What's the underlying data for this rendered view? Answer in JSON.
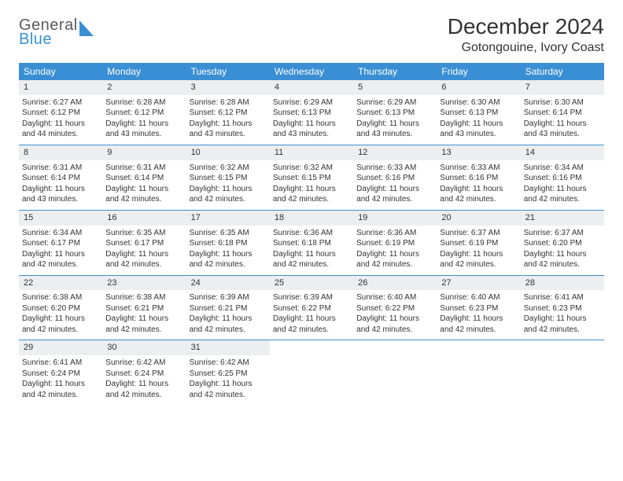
{
  "logo": {
    "line1": "General",
    "line2": "Blue"
  },
  "title": "December 2024",
  "location": "Gotongouine, Ivory Coast",
  "colors": {
    "header_bg": "#3a8fd4",
    "header_fg": "#ffffff",
    "daynum_bg": "#eceeef",
    "week_divider": "#3a8fd4",
    "text": "#333333",
    "logo_gray": "#5a5a5a",
    "logo_blue": "#3a8fd4"
  },
  "typography": {
    "title_fontsize": 28,
    "location_fontsize": 16,
    "weekday_fontsize": 12,
    "daynum_fontsize": 11,
    "body_fontsize": 10
  },
  "weekdays": [
    "Sunday",
    "Monday",
    "Tuesday",
    "Wednesday",
    "Thursday",
    "Friday",
    "Saturday"
  ],
  "days": [
    {
      "num": "1",
      "sunrise": "Sunrise: 6:27 AM",
      "sunset": "Sunset: 6:12 PM",
      "daylight1": "Daylight: 11 hours",
      "daylight2": "and 44 minutes."
    },
    {
      "num": "2",
      "sunrise": "Sunrise: 6:28 AM",
      "sunset": "Sunset: 6:12 PM",
      "daylight1": "Daylight: 11 hours",
      "daylight2": "and 43 minutes."
    },
    {
      "num": "3",
      "sunrise": "Sunrise: 6:28 AM",
      "sunset": "Sunset: 6:12 PM",
      "daylight1": "Daylight: 11 hours",
      "daylight2": "and 43 minutes."
    },
    {
      "num": "4",
      "sunrise": "Sunrise: 6:29 AM",
      "sunset": "Sunset: 6:13 PM",
      "daylight1": "Daylight: 11 hours",
      "daylight2": "and 43 minutes."
    },
    {
      "num": "5",
      "sunrise": "Sunrise: 6:29 AM",
      "sunset": "Sunset: 6:13 PM",
      "daylight1": "Daylight: 11 hours",
      "daylight2": "and 43 minutes."
    },
    {
      "num": "6",
      "sunrise": "Sunrise: 6:30 AM",
      "sunset": "Sunset: 6:13 PM",
      "daylight1": "Daylight: 11 hours",
      "daylight2": "and 43 minutes."
    },
    {
      "num": "7",
      "sunrise": "Sunrise: 6:30 AM",
      "sunset": "Sunset: 6:14 PM",
      "daylight1": "Daylight: 11 hours",
      "daylight2": "and 43 minutes."
    },
    {
      "num": "8",
      "sunrise": "Sunrise: 6:31 AM",
      "sunset": "Sunset: 6:14 PM",
      "daylight1": "Daylight: 11 hours",
      "daylight2": "and 43 minutes."
    },
    {
      "num": "9",
      "sunrise": "Sunrise: 6:31 AM",
      "sunset": "Sunset: 6:14 PM",
      "daylight1": "Daylight: 11 hours",
      "daylight2": "and 42 minutes."
    },
    {
      "num": "10",
      "sunrise": "Sunrise: 6:32 AM",
      "sunset": "Sunset: 6:15 PM",
      "daylight1": "Daylight: 11 hours",
      "daylight2": "and 42 minutes."
    },
    {
      "num": "11",
      "sunrise": "Sunrise: 6:32 AM",
      "sunset": "Sunset: 6:15 PM",
      "daylight1": "Daylight: 11 hours",
      "daylight2": "and 42 minutes."
    },
    {
      "num": "12",
      "sunrise": "Sunrise: 6:33 AM",
      "sunset": "Sunset: 6:16 PM",
      "daylight1": "Daylight: 11 hours",
      "daylight2": "and 42 minutes."
    },
    {
      "num": "13",
      "sunrise": "Sunrise: 6:33 AM",
      "sunset": "Sunset: 6:16 PM",
      "daylight1": "Daylight: 11 hours",
      "daylight2": "and 42 minutes."
    },
    {
      "num": "14",
      "sunrise": "Sunrise: 6:34 AM",
      "sunset": "Sunset: 6:16 PM",
      "daylight1": "Daylight: 11 hours",
      "daylight2": "and 42 minutes."
    },
    {
      "num": "15",
      "sunrise": "Sunrise: 6:34 AM",
      "sunset": "Sunset: 6:17 PM",
      "daylight1": "Daylight: 11 hours",
      "daylight2": "and 42 minutes."
    },
    {
      "num": "16",
      "sunrise": "Sunrise: 6:35 AM",
      "sunset": "Sunset: 6:17 PM",
      "daylight1": "Daylight: 11 hours",
      "daylight2": "and 42 minutes."
    },
    {
      "num": "17",
      "sunrise": "Sunrise: 6:35 AM",
      "sunset": "Sunset: 6:18 PM",
      "daylight1": "Daylight: 11 hours",
      "daylight2": "and 42 minutes."
    },
    {
      "num": "18",
      "sunrise": "Sunrise: 6:36 AM",
      "sunset": "Sunset: 6:18 PM",
      "daylight1": "Daylight: 11 hours",
      "daylight2": "and 42 minutes."
    },
    {
      "num": "19",
      "sunrise": "Sunrise: 6:36 AM",
      "sunset": "Sunset: 6:19 PM",
      "daylight1": "Daylight: 11 hours",
      "daylight2": "and 42 minutes."
    },
    {
      "num": "20",
      "sunrise": "Sunrise: 6:37 AM",
      "sunset": "Sunset: 6:19 PM",
      "daylight1": "Daylight: 11 hours",
      "daylight2": "and 42 minutes."
    },
    {
      "num": "21",
      "sunrise": "Sunrise: 6:37 AM",
      "sunset": "Sunset: 6:20 PM",
      "daylight1": "Daylight: 11 hours",
      "daylight2": "and 42 minutes."
    },
    {
      "num": "22",
      "sunrise": "Sunrise: 6:38 AM",
      "sunset": "Sunset: 6:20 PM",
      "daylight1": "Daylight: 11 hours",
      "daylight2": "and 42 minutes."
    },
    {
      "num": "23",
      "sunrise": "Sunrise: 6:38 AM",
      "sunset": "Sunset: 6:21 PM",
      "daylight1": "Daylight: 11 hours",
      "daylight2": "and 42 minutes."
    },
    {
      "num": "24",
      "sunrise": "Sunrise: 6:39 AM",
      "sunset": "Sunset: 6:21 PM",
      "daylight1": "Daylight: 11 hours",
      "daylight2": "and 42 minutes."
    },
    {
      "num": "25",
      "sunrise": "Sunrise: 6:39 AM",
      "sunset": "Sunset: 6:22 PM",
      "daylight1": "Daylight: 11 hours",
      "daylight2": "and 42 minutes."
    },
    {
      "num": "26",
      "sunrise": "Sunrise: 6:40 AM",
      "sunset": "Sunset: 6:22 PM",
      "daylight1": "Daylight: 11 hours",
      "daylight2": "and 42 minutes."
    },
    {
      "num": "27",
      "sunrise": "Sunrise: 6:40 AM",
      "sunset": "Sunset: 6:23 PM",
      "daylight1": "Daylight: 11 hours",
      "daylight2": "and 42 minutes."
    },
    {
      "num": "28",
      "sunrise": "Sunrise: 6:41 AM",
      "sunset": "Sunset: 6:23 PM",
      "daylight1": "Daylight: 11 hours",
      "daylight2": "and 42 minutes."
    },
    {
      "num": "29",
      "sunrise": "Sunrise: 6:41 AM",
      "sunset": "Sunset: 6:24 PM",
      "daylight1": "Daylight: 11 hours",
      "daylight2": "and 42 minutes."
    },
    {
      "num": "30",
      "sunrise": "Sunrise: 6:42 AM",
      "sunset": "Sunset: 6:24 PM",
      "daylight1": "Daylight: 11 hours",
      "daylight2": "and 42 minutes."
    },
    {
      "num": "31",
      "sunrise": "Sunrise: 6:42 AM",
      "sunset": "Sunset: 6:25 PM",
      "daylight1": "Daylight: 11 hours",
      "daylight2": "and 42 minutes."
    }
  ]
}
